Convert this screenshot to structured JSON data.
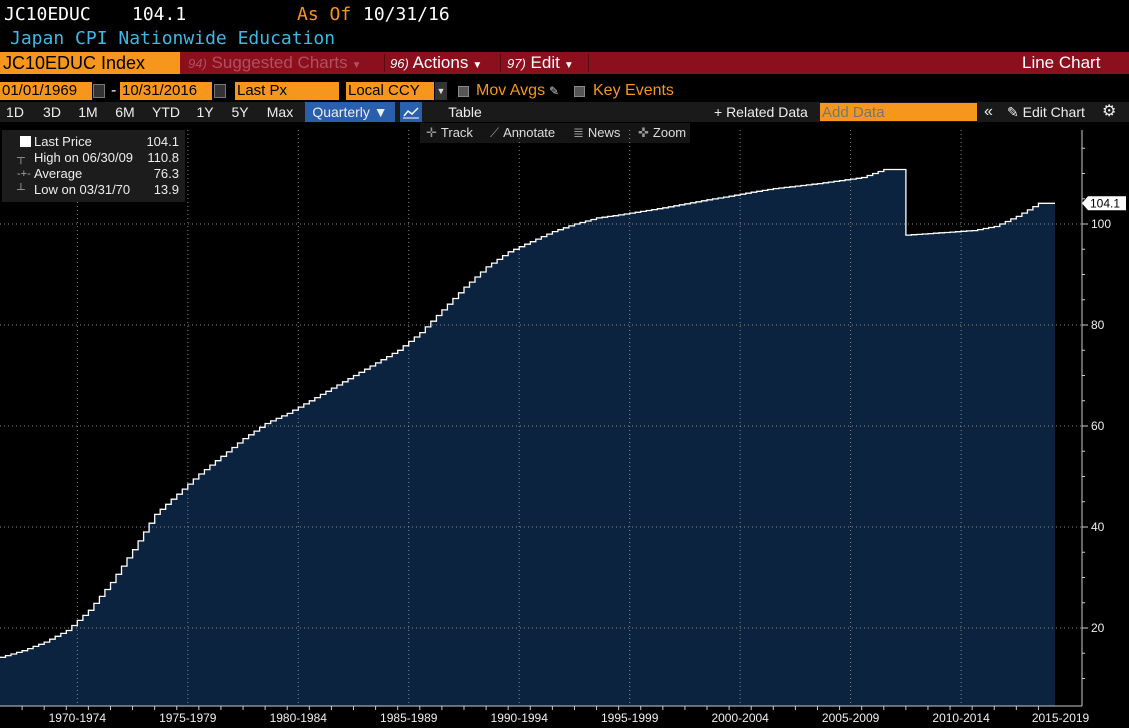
{
  "header": {
    "ticker": "JC10EDUC",
    "last_value": "104.1",
    "as_of_label": "As Of",
    "as_of_date": "10/31/16",
    "subtitle": "Japan CPI Nationwide Education"
  },
  "toolbar": {
    "security": "JC10EDUC Index",
    "suggested_num": "94)",
    "suggested_label": "Suggested Charts",
    "actions_num": "96)",
    "actions_label": "Actions",
    "edit_num": "97)",
    "edit_label": "Edit",
    "view_label": "Line Chart"
  },
  "range": {
    "start": "01/01/1969",
    "dash": "-",
    "end": "10/31/2016",
    "field": "Last Px",
    "currency": "Local CCY",
    "mov_avgs": "Mov Avgs",
    "key_events": "Key Events"
  },
  "periods": [
    "1D",
    "3D",
    "1M",
    "6M",
    "YTD",
    "1Y",
    "5Y",
    "Max"
  ],
  "frequency": "Quarterly",
  "table_label": "Table",
  "related_label": "+ Related Data",
  "add_data_placeholder": "Add Data",
  "edit_chart_label": "Edit Chart",
  "tools": {
    "track": "Track",
    "annotate": "Annotate",
    "news": "News",
    "zoom": "Zoom"
  },
  "legend": {
    "last_price_label": "Last Price",
    "last_price_value": "104.1",
    "high_label": "High on 06/30/09",
    "high_value": "110.8",
    "average_label": "Average",
    "average_value": "76.3",
    "low_label": "Low on 03/31/70",
    "low_value": "13.9"
  },
  "colors": {
    "background": "#000000",
    "area_fill": "#0c2340",
    "line": "#ffffff",
    "accent_orange": "#f7961c",
    "title_blue": "#3fb8e6",
    "menu_red": "#8b0f1c"
  },
  "chart_data": {
    "type": "area",
    "series": [
      {
        "name": "Last Price",
        "color": "#ffffff",
        "fill": "#0c2340"
      }
    ],
    "x": [
      "1969",
      "1970",
      "1971",
      "1972",
      "1973",
      "1974",
      "1975",
      "1976",
      "1977",
      "1978",
      "1979",
      "1980",
      "1981",
      "1982",
      "1983",
      "1984",
      "1985",
      "1986",
      "1987",
      "1988",
      "1989",
      "1990",
      "1991",
      "1992",
      "1993",
      "1994",
      "1995",
      "1996",
      "1997",
      "1998",
      "1999",
      "2000",
      "2001",
      "2002",
      "2003",
      "2004",
      "2005",
      "2006",
      "2007",
      "2008",
      "2009",
      "2010",
      "2011",
      "2012",
      "2013",
      "2014",
      "2015",
      "2016"
    ],
    "values": [
      14.2,
      15.5,
      17.2,
      19.5,
      23.5,
      29,
      35.5,
      42.5,
      46.5,
      50.5,
      54,
      57.5,
      60.5,
      62.5,
      65,
      67.5,
      70,
      72.5,
      75,
      78.5,
      83,
      87.5,
      91.5,
      94.5,
      96.5,
      98.5,
      100,
      101.2,
      101.8,
      102.5,
      103.2,
      104,
      104.8,
      105.5,
      106.3,
      107,
      107.5,
      108,
      108.6,
      109.2,
      110.8,
      97.8,
      98.1,
      98.4,
      98.7,
      99.5,
      101.5,
      104.1
    ],
    "x_tick_labels": [
      "1970-1974",
      "1975-1979",
      "1980-1984",
      "1985-1989",
      "1990-1994",
      "1995-1999",
      "2000-2004",
      "2005-2009",
      "2010-2014",
      "2015-2019"
    ],
    "y_ticks": [
      20,
      40,
      60,
      80,
      100
    ],
    "ylim": [
      0,
      120
    ],
    "last_value_label": "104.1",
    "grid": true
  }
}
